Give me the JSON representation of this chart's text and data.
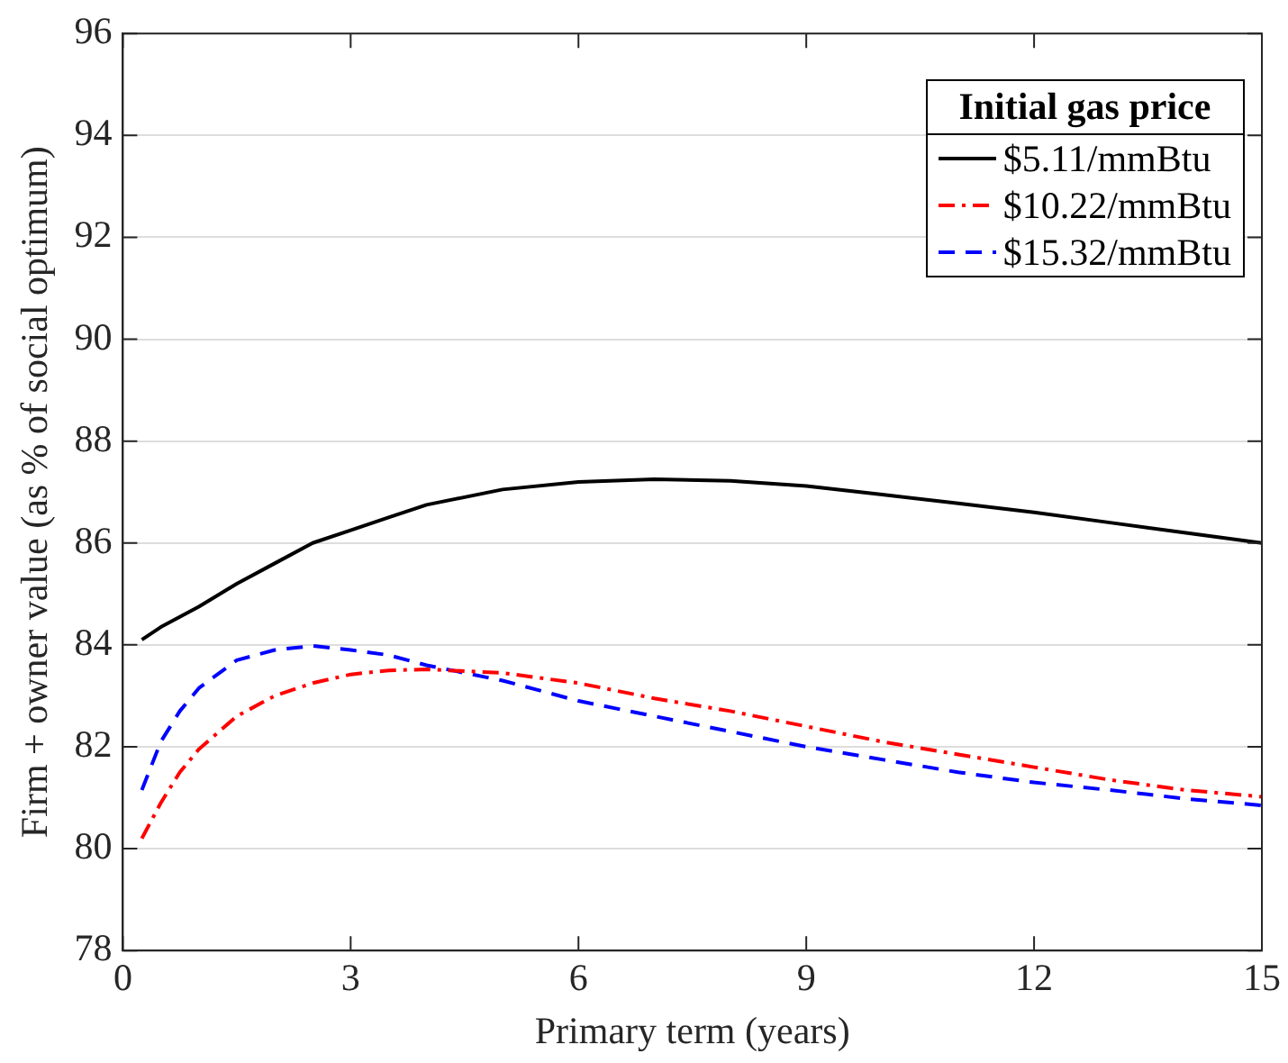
{
  "chart_data": {
    "type": "line",
    "xlabel": "Primary term (years)",
    "ylabel": "Firm + owner value (as % of social optimum)",
    "legend_title": "Initial gas price",
    "legend": "top right",
    "grid": "y",
    "marker": "none",
    "x": [
      0.25,
      0.5,
      0.75,
      1,
      1.5,
      2,
      2.5,
      3,
      3.5,
      4,
      5,
      6,
      7,
      8,
      9,
      10,
      11,
      12,
      13,
      14,
      15
    ],
    "xlim": [
      0,
      15
    ],
    "xticks": [
      0,
      3,
      6,
      9,
      12,
      15
    ],
    "ylim": [
      78,
      96
    ],
    "yticks": [
      78,
      80,
      82,
      84,
      86,
      88,
      90,
      92,
      94,
      96
    ],
    "series": [
      {
        "name": "$5.11/mmBtu",
        "color": "#000000",
        "line_style": "solid",
        "values": [
          84.1,
          84.35,
          84.55,
          84.75,
          85.2,
          85.6,
          86.0,
          86.25,
          86.5,
          86.75,
          87.05,
          87.2,
          87.25,
          87.22,
          87.12,
          86.95,
          86.78,
          86.6,
          86.4,
          86.2,
          86.0
        ]
      },
      {
        "name": "$10.22/mmBtu",
        "color": "#ff0000",
        "line_style": "dashdot",
        "values": [
          80.2,
          80.9,
          81.5,
          81.95,
          82.6,
          83.0,
          83.25,
          83.42,
          83.5,
          83.52,
          83.45,
          83.25,
          82.95,
          82.7,
          82.4,
          82.1,
          81.85,
          81.6,
          81.35,
          81.15,
          81.02
        ]
      },
      {
        "name": "$15.32/mmBtu",
        "color": "#0000ff",
        "line_style": "dashed",
        "values": [
          81.15,
          82.1,
          82.7,
          83.15,
          83.7,
          83.9,
          83.98,
          83.9,
          83.8,
          83.6,
          83.3,
          82.9,
          82.6,
          82.3,
          82.0,
          81.75,
          81.5,
          81.3,
          81.15,
          80.98,
          80.85
        ]
      }
    ]
  }
}
